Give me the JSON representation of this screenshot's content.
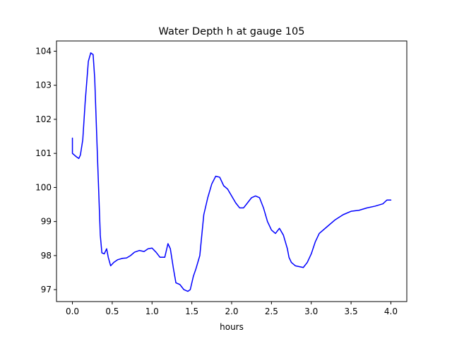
{
  "chart_data": {
    "type": "line",
    "title": "Water Depth h at gauge 105",
    "xlabel": "hours",
    "ylabel": "",
    "xlim": [
      -0.2,
      4.2
    ],
    "ylim": [
      96.65,
      104.3
    ],
    "grid": false,
    "x_ticks": [
      0.0,
      0.5,
      1.0,
      1.5,
      2.0,
      2.5,
      3.0,
      3.5,
      4.0
    ],
    "x_tick_labels": [
      "0.0",
      "0.5",
      "1.0",
      "1.5",
      "2.0",
      "2.5",
      "3.0",
      "3.5",
      "4.0"
    ],
    "y_ticks": [
      97,
      98,
      99,
      100,
      101,
      102,
      103,
      104
    ],
    "y_tick_labels": [
      "97",
      "98",
      "99",
      "100",
      "101",
      "102",
      "103",
      "104"
    ],
    "series": [
      {
        "color": "#0000ff",
        "x": [
          0.0,
          0.0,
          0.05,
          0.08,
          0.1,
          0.13,
          0.16,
          0.2,
          0.23,
          0.26,
          0.28,
          0.31,
          0.35,
          0.37,
          0.4,
          0.43,
          0.45,
          0.48,
          0.52,
          0.57,
          0.63,
          0.68,
          0.73,
          0.78,
          0.84,
          0.9,
          0.95,
          1.0,
          1.05,
          1.1,
          1.16,
          1.2,
          1.23,
          1.27,
          1.3,
          1.35,
          1.4,
          1.45,
          1.48,
          1.52,
          1.55,
          1.6,
          1.65,
          1.7,
          1.75,
          1.8,
          1.85,
          1.9,
          1.95,
          2.0,
          2.05,
          2.1,
          2.15,
          2.2,
          2.25,
          2.3,
          2.35,
          2.4,
          2.45,
          2.5,
          2.55,
          2.6,
          2.65,
          2.7,
          2.72,
          2.75,
          2.8,
          2.9,
          2.95,
          3.0,
          3.05,
          3.1,
          3.2,
          3.3,
          3.4,
          3.5,
          3.6,
          3.7,
          3.8,
          3.9,
          3.95,
          4.0
        ],
        "y": [
          101.45,
          101.0,
          100.9,
          100.85,
          100.95,
          101.4,
          102.5,
          103.7,
          103.95,
          103.9,
          103.2,
          101.2,
          98.6,
          98.08,
          98.05,
          98.2,
          97.95,
          97.7,
          97.8,
          97.88,
          97.92,
          97.93,
          98.0,
          98.1,
          98.15,
          98.12,
          98.2,
          98.22,
          98.1,
          97.95,
          97.95,
          98.35,
          98.2,
          97.6,
          97.2,
          97.15,
          97.0,
          96.95,
          97.0,
          97.4,
          97.6,
          98.0,
          99.2,
          99.7,
          100.1,
          100.33,
          100.3,
          100.05,
          99.95,
          99.75,
          99.55,
          99.4,
          99.4,
          99.55,
          99.7,
          99.75,
          99.7,
          99.4,
          99.0,
          98.75,
          98.65,
          98.8,
          98.6,
          98.2,
          97.95,
          97.8,
          97.7,
          97.65,
          97.8,
          98.05,
          98.4,
          98.65,
          98.85,
          99.05,
          99.2,
          99.3,
          99.33,
          99.4,
          99.45,
          99.52,
          99.63,
          99.63
        ]
      }
    ]
  }
}
